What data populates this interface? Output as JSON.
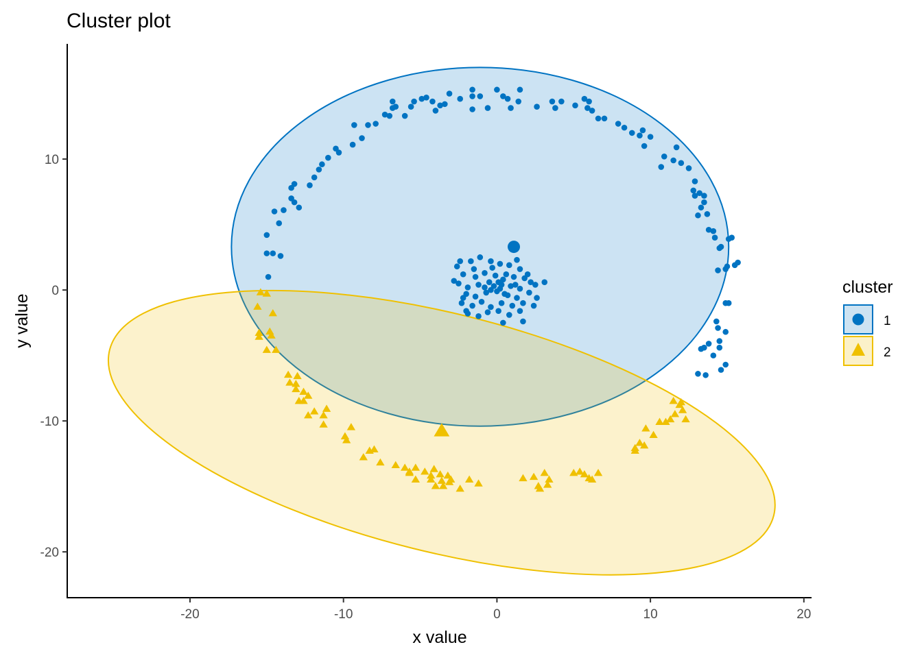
{
  "chart_data": {
    "type": "scatter",
    "title": "Cluster plot",
    "xlabel": "x value",
    "ylabel": "y value",
    "xlim": [
      -28,
      20.5
    ],
    "ylim": [
      -23.5,
      18.8
    ],
    "x_ticks": [
      -20,
      -10,
      0,
      10,
      20
    ],
    "y_ticks": [
      -20,
      -10,
      0,
      10
    ],
    "grid": false,
    "legend": {
      "title": "cluster",
      "placement": "right",
      "entries": [
        {
          "label": "1",
          "shape": "circle",
          "color": "#0073C2"
        },
        {
          "label": "2",
          "shape": "triangle",
          "color": "#EFC000"
        }
      ]
    },
    "series": [
      {
        "name": "1",
        "marker": "circle",
        "color": "#0073C2",
        "fill": "#CDE3F2",
        "hull_ellipse": {
          "center": [
            -1.1,
            3.3
          ],
          "rx": 16.2,
          "ry": 13.7,
          "rotation_deg": 0
        },
        "centroid": [
          1.1,
          3.3
        ],
        "points": [
          [
            -15.0,
            4.2
          ],
          [
            -15.0,
            2.8
          ],
          [
            -14.6,
            2.8
          ],
          [
            -14.1,
            2.6
          ],
          [
            -14.9,
            1.0
          ],
          [
            -14.5,
            6.0
          ],
          [
            -14.2,
            5.1
          ],
          [
            -13.9,
            6.1
          ],
          [
            -13.4,
            7.8
          ],
          [
            -13.2,
            8.1
          ],
          [
            -13.4,
            7.0
          ],
          [
            -13.2,
            6.7
          ],
          [
            -12.9,
            6.3
          ],
          [
            -12.2,
            8.0
          ],
          [
            -11.9,
            8.6
          ],
          [
            -11.6,
            9.2
          ],
          [
            -11.4,
            9.6
          ],
          [
            -11.0,
            10.1
          ],
          [
            -10.5,
            10.8
          ],
          [
            -10.3,
            10.5
          ],
          [
            -9.4,
            11.1
          ],
          [
            -8.8,
            11.6
          ],
          [
            -9.3,
            12.6
          ],
          [
            -8.4,
            12.6
          ],
          [
            -7.9,
            12.7
          ],
          [
            -7.3,
            13.4
          ],
          [
            -7.0,
            13.3
          ],
          [
            -6.8,
            13.9
          ],
          [
            -6.6,
            14.0
          ],
          [
            -6.8,
            14.4
          ],
          [
            -6.0,
            13.3
          ],
          [
            -5.6,
            14.0
          ],
          [
            -5.4,
            14.4
          ],
          [
            -4.9,
            14.6
          ],
          [
            -4.6,
            14.7
          ],
          [
            -4.2,
            14.4
          ],
          [
            -4.0,
            13.7
          ],
          [
            -3.7,
            14.1
          ],
          [
            -3.4,
            14.2
          ],
          [
            -3.1,
            15.0
          ],
          [
            -2.4,
            14.6
          ],
          [
            -1.6,
            15.3
          ],
          [
            -1.6,
            14.8
          ],
          [
            -1.6,
            13.8
          ],
          [
            -1.1,
            14.8
          ],
          [
            -0.6,
            13.9
          ],
          [
            0.0,
            15.3
          ],
          [
            0.4,
            14.8
          ],
          [
            0.7,
            14.6
          ],
          [
            0.9,
            13.9
          ],
          [
            1.4,
            14.4
          ],
          [
            1.5,
            15.3
          ],
          [
            2.6,
            14.0
          ],
          [
            3.6,
            14.4
          ],
          [
            3.8,
            13.9
          ],
          [
            4.2,
            14.4
          ],
          [
            5.1,
            14.1
          ],
          [
            5.7,
            14.6
          ],
          [
            5.9,
            13.9
          ],
          [
            6.2,
            13.7
          ],
          [
            6.0,
            14.4
          ],
          [
            6.6,
            13.1
          ],
          [
            7.0,
            13.1
          ],
          [
            7.9,
            12.7
          ],
          [
            8.3,
            12.4
          ],
          [
            8.8,
            12.0
          ],
          [
            9.3,
            11.8
          ],
          [
            9.5,
            12.2
          ],
          [
            9.6,
            11.0
          ],
          [
            10.0,
            11.7
          ],
          [
            10.7,
            9.4
          ],
          [
            10.9,
            10.2
          ],
          [
            11.5,
            9.9
          ],
          [
            11.7,
            10.9
          ],
          [
            12.0,
            9.7
          ],
          [
            12.5,
            9.3
          ],
          [
            12.9,
            8.3
          ],
          [
            12.8,
            7.6
          ],
          [
            13.2,
            7.4
          ],
          [
            13.5,
            7.2
          ],
          [
            13.5,
            6.7
          ],
          [
            12.9,
            7.2
          ],
          [
            13.3,
            6.3
          ],
          [
            13.7,
            5.8
          ],
          [
            13.1,
            5.7
          ],
          [
            13.8,
            4.6
          ],
          [
            14.1,
            4.5
          ],
          [
            14.2,
            4.0
          ],
          [
            14.5,
            3.2
          ],
          [
            14.6,
            3.3
          ],
          [
            14.9,
            1.6
          ],
          [
            15.0,
            1.8
          ],
          [
            15.5,
            1.9
          ],
          [
            15.7,
            2.1
          ],
          [
            15.3,
            4.0
          ],
          [
            15.1,
            3.9
          ],
          [
            14.4,
            1.5
          ],
          [
            14.9,
            -1.0
          ],
          [
            15.1,
            -1.0
          ],
          [
            14.3,
            -2.4
          ],
          [
            14.4,
            -2.9
          ],
          [
            14.9,
            -3.2
          ],
          [
            14.5,
            -3.9
          ],
          [
            13.8,
            -4.1
          ],
          [
            13.5,
            -4.4
          ],
          [
            14.5,
            -4.4
          ],
          [
            14.1,
            -5.0
          ],
          [
            14.9,
            -5.7
          ],
          [
            14.6,
            -6.1
          ],
          [
            13.6,
            -6.5
          ],
          [
            13.1,
            -6.4
          ],
          [
            13.3,
            -4.5
          ],
          [
            -2.4,
            2.2
          ],
          [
            -1.7,
            2.2
          ],
          [
            -1.1,
            2.5
          ],
          [
            -0.4,
            2.2
          ],
          [
            0.2,
            2.0
          ],
          [
            0.8,
            1.9
          ],
          [
            1.3,
            2.3
          ],
          [
            1.5,
            1.6
          ],
          [
            -2.2,
            1.2
          ],
          [
            -1.4,
            1.0
          ],
          [
            -0.8,
            1.3
          ],
          [
            -0.1,
            1.1
          ],
          [
            0.6,
            1.2
          ],
          [
            1.1,
            1.0
          ],
          [
            1.8,
            0.9
          ],
          [
            2.2,
            0.6
          ],
          [
            -2.5,
            0.5
          ],
          [
            -1.9,
            0.2
          ],
          [
            -1.2,
            0.4
          ],
          [
            -0.5,
            0.6
          ],
          [
            0.3,
            0.4
          ],
          [
            0.9,
            0.3
          ],
          [
            1.5,
            0.1
          ],
          [
            2.5,
            0.4
          ],
          [
            -2.8,
            0.7
          ],
          [
            -2.0,
            -0.3
          ],
          [
            -1.4,
            -0.5
          ],
          [
            -0.7,
            -0.2
          ],
          [
            0.0,
            -0.1
          ],
          [
            0.7,
            -0.4
          ],
          [
            1.3,
            -0.6
          ],
          [
            2.1,
            -0.2
          ],
          [
            -2.3,
            -1.0
          ],
          [
            -1.6,
            -1.2
          ],
          [
            -1.0,
            -0.9
          ],
          [
            -0.4,
            -1.3
          ],
          [
            0.3,
            -1.0
          ],
          [
            1.0,
            -1.2
          ],
          [
            1.7,
            -1.0
          ],
          [
            2.4,
            -1.2
          ],
          [
            -1.9,
            -1.8
          ],
          [
            -1.2,
            -2.0
          ],
          [
            -0.6,
            -1.7
          ],
          [
            0.1,
            -1.6
          ],
          [
            0.8,
            -1.9
          ],
          [
            1.5,
            -1.6
          ],
          [
            3.1,
            0.6
          ],
          [
            0.4,
            -2.5
          ],
          [
            -0.2,
            0.3
          ],
          [
            0.2,
            0.1
          ],
          [
            0.5,
            -0.3
          ],
          [
            -0.4,
            0.0
          ],
          [
            0.1,
            0.6
          ],
          [
            0.4,
            0.8
          ],
          [
            -0.8,
            0.2
          ],
          [
            1.2,
            0.4
          ],
          [
            -2.0,
            -1.6
          ],
          [
            -1.5,
            1.6
          ],
          [
            -0.3,
            1.7
          ],
          [
            -2.6,
            1.8
          ],
          [
            2.0,
            1.2
          ],
          [
            -2.2,
            -0.6
          ],
          [
            2.6,
            -0.6
          ],
          [
            1.7,
            -2.4
          ]
        ]
      },
      {
        "name": "2",
        "marker": "triangle",
        "color": "#EFC000",
        "fill": "#FBF1C9",
        "hull_ellipse": {
          "center": [
            -3.6,
            -10.9
          ],
          "rx": 22.3,
          "ry": 9.1,
          "rotation_deg": 14
        },
        "centroid": [
          -3.6,
          -10.8
        ],
        "points": [
          [
            -15.4,
            -0.2
          ],
          [
            -15.0,
            -0.3
          ],
          [
            -15.6,
            -1.3
          ],
          [
            -14.6,
            -1.8
          ],
          [
            -15.5,
            -3.3
          ],
          [
            -15.5,
            -3.6
          ],
          [
            -14.8,
            -3.2
          ],
          [
            -14.7,
            -3.5
          ],
          [
            -15.0,
            -4.6
          ],
          [
            -14.4,
            -4.6
          ],
          [
            -13.6,
            -6.5
          ],
          [
            -13.0,
            -6.6
          ],
          [
            -13.5,
            -7.1
          ],
          [
            -13.1,
            -7.2
          ],
          [
            -13.1,
            -7.6
          ],
          [
            -12.6,
            -7.8
          ],
          [
            -12.3,
            -8.1
          ],
          [
            -12.9,
            -8.5
          ],
          [
            -12.6,
            -8.5
          ],
          [
            -12.3,
            -9.6
          ],
          [
            -11.9,
            -9.3
          ],
          [
            -11.3,
            -9.6
          ],
          [
            -11.1,
            -9.1
          ],
          [
            -11.3,
            -10.3
          ],
          [
            -9.5,
            -10.5
          ],
          [
            -9.9,
            -11.2
          ],
          [
            -9.8,
            -11.5
          ],
          [
            -8.3,
            -12.3
          ],
          [
            -8.0,
            -12.2
          ],
          [
            -8.7,
            -12.8
          ],
          [
            -7.6,
            -13.2
          ],
          [
            -6.6,
            -13.4
          ],
          [
            -6.0,
            -13.6
          ],
          [
            -5.7,
            -13.9
          ],
          [
            -5.3,
            -13.6
          ],
          [
            -5.7,
            -14.0
          ],
          [
            -5.3,
            -14.5
          ],
          [
            -4.7,
            -13.9
          ],
          [
            -4.3,
            -14.2
          ],
          [
            -4.1,
            -13.7
          ],
          [
            -4.3,
            -14.5
          ],
          [
            -4.0,
            -15.0
          ],
          [
            -3.7,
            -14.1
          ],
          [
            -3.6,
            -14.6
          ],
          [
            -3.5,
            -15.0
          ],
          [
            -3.2,
            -14.2
          ],
          [
            -3.1,
            -14.7
          ],
          [
            -3.0,
            -14.5
          ],
          [
            -2.4,
            -15.2
          ],
          [
            -1.8,
            -14.5
          ],
          [
            -1.2,
            -14.8
          ],
          [
            -3.6,
            -10.8
          ],
          [
            1.7,
            -14.4
          ],
          [
            2.4,
            -14.3
          ],
          [
            2.7,
            -15.0
          ],
          [
            2.8,
            -15.2
          ],
          [
            3.1,
            -14.0
          ],
          [
            3.4,
            -14.5
          ],
          [
            3.3,
            -14.9
          ],
          [
            5.0,
            -14.0
          ],
          [
            5.4,
            -13.9
          ],
          [
            5.7,
            -14.1
          ],
          [
            6.0,
            -14.4
          ],
          [
            6.2,
            -14.5
          ],
          [
            6.6,
            -14.0
          ],
          [
            9.0,
            -12.3
          ],
          [
            9.3,
            -11.7
          ],
          [
            9.6,
            -11.9
          ],
          [
            9.7,
            -10.6
          ],
          [
            10.2,
            -11.1
          ],
          [
            10.6,
            -10.1
          ],
          [
            11.0,
            -10.1
          ],
          [
            11.3,
            -9.9
          ],
          [
            11.5,
            -8.5
          ],
          [
            11.6,
            -9.5
          ],
          [
            11.9,
            -8.8
          ],
          [
            12.0,
            -8.6
          ],
          [
            12.1,
            -9.2
          ],
          [
            12.3,
            -9.9
          ],
          [
            9.0,
            -12.1
          ]
        ]
      }
    ]
  }
}
